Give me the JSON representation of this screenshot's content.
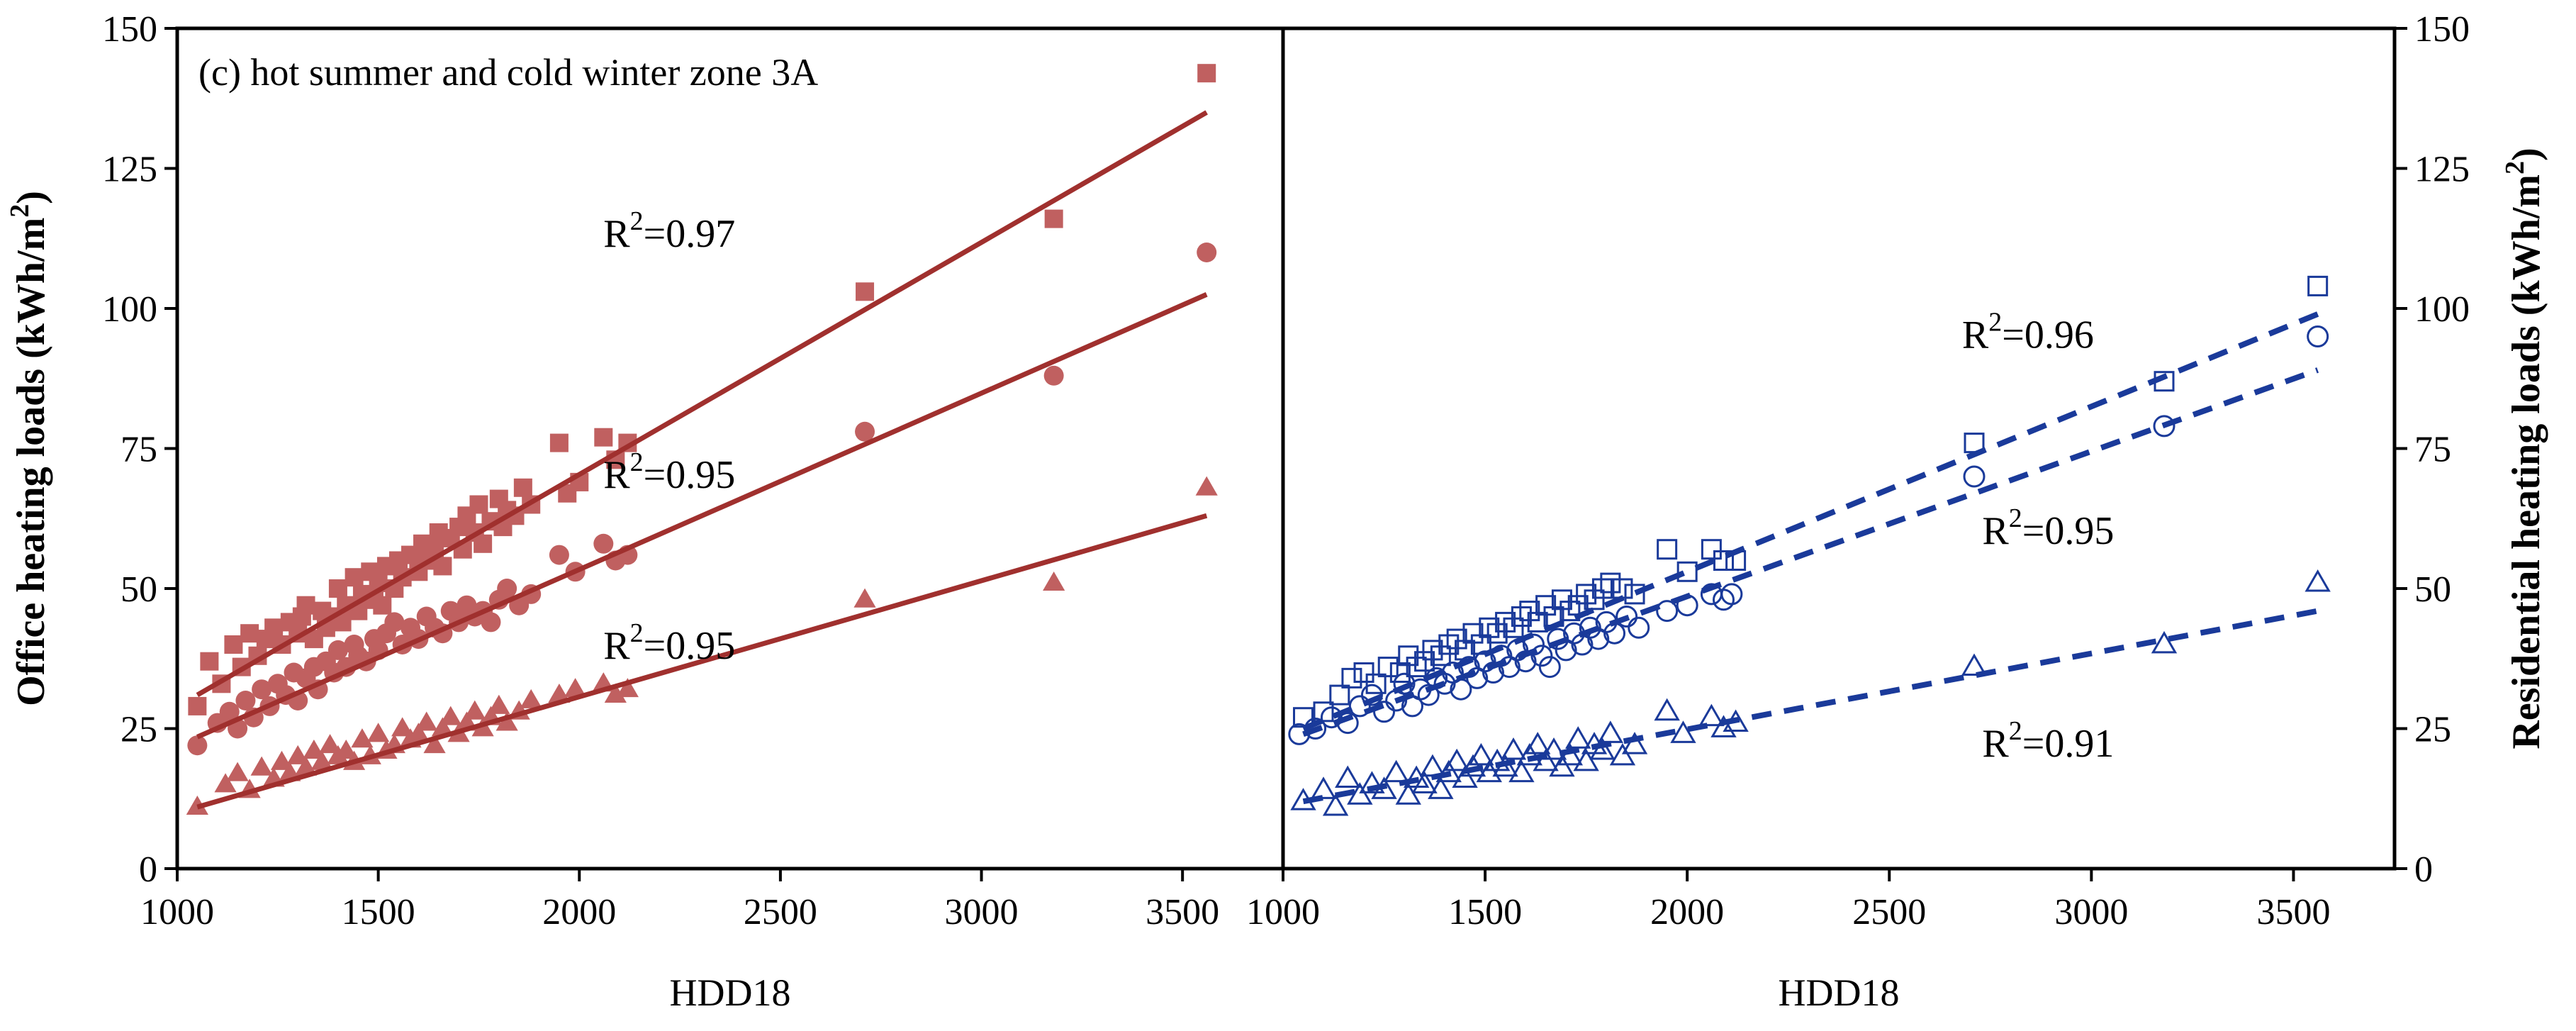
{
  "panel_label": "(c) hot summer and cold winter zone 3A",
  "colors": {
    "office": "#A0302E",
    "office_marker": "#C06060",
    "residential": "#1A3A9A",
    "axis": "#000000",
    "background": "#FFFFFF"
  },
  "chart_data": [
    {
      "id": "office",
      "type": "scatter",
      "title": "",
      "xlabel": "HDD18",
      "ylabel_main": "Office heating loads (kWh/m",
      "ylabel_sup": "2",
      "ylabel_close": ")",
      "xlim": [
        1000,
        3750
      ],
      "ylim": [
        0,
        150
      ],
      "xticks": [
        "1000",
        "1500",
        "2000",
        "2500",
        "3000",
        "3500"
      ],
      "yticks": [
        "0",
        "25",
        "50",
        "75",
        "100",
        "125",
        "150"
      ],
      "series": [
        {
          "name": "Office - square",
          "marker": "square-filled",
          "fit": {
            "x": [
              1050,
              3560
            ],
            "y": [
              31,
              135
            ],
            "r2_prefix": "R",
            "r2_sup": "2",
            "r2_value": "=0.97",
            "label_at": [
              2060,
              111
            ]
          },
          "x": [
            1050,
            1080,
            1110,
            1140,
            1160,
            1180,
            1200,
            1220,
            1240,
            1260,
            1280,
            1300,
            1310,
            1320,
            1340,
            1360,
            1370,
            1380,
            1400,
            1410,
            1420,
            1440,
            1450,
            1460,
            1480,
            1490,
            1500,
            1510,
            1520,
            1540,
            1550,
            1560,
            1580,
            1600,
            1610,
            1620,
            1640,
            1650,
            1660,
            1680,
            1700,
            1710,
            1720,
            1740,
            1750,
            1760,
            1780,
            1800,
            1810,
            1820,
            1840,
            1860,
            1880,
            1950,
            1970,
            2000,
            2060,
            2090,
            2120,
            2710,
            3180,
            3560
          ],
          "y": [
            29,
            37,
            33,
            40,
            36,
            42,
            38,
            41,
            43,
            40,
            44,
            42,
            45,
            47,
            41,
            46,
            43,
            45,
            50,
            44,
            47,
            52,
            46,
            49,
            53,
            48,
            51,
            47,
            54,
            50,
            55,
            52,
            56,
            53,
            58,
            55,
            57,
            60,
            54,
            59,
            61,
            57,
            63,
            60,
            65,
            58,
            62,
            66,
            61,
            64,
            63,
            68,
            65,
            76,
            67,
            69,
            77,
            73,
            76,
            103,
            116,
            142
          ]
        },
        {
          "name": "Office - circle",
          "marker": "circle-filled",
          "fit": {
            "x": [
              1050,
              3560
            ],
            "y": [
              23.5,
              102.5
            ],
            "r2_prefix": "R",
            "r2_sup": "2",
            "r2_value": "=0.95",
            "label_at": [
              2060,
              68
            ]
          },
          "x": [
            1050,
            1100,
            1130,
            1150,
            1170,
            1190,
            1210,
            1230,
            1250,
            1270,
            1290,
            1300,
            1320,
            1340,
            1350,
            1370,
            1390,
            1400,
            1420,
            1440,
            1450,
            1470,
            1490,
            1500,
            1520,
            1540,
            1560,
            1580,
            1600,
            1620,
            1640,
            1660,
            1680,
            1700,
            1720,
            1740,
            1760,
            1780,
            1800,
            1820,
            1850,
            1880,
            1950,
            1990,
            2060,
            2090,
            2120,
            2710,
            3180,
            3560
          ],
          "y": [
            22,
            26,
            28,
            25,
            30,
            27,
            32,
            29,
            33,
            31,
            35,
            30,
            34,
            36,
            32,
            37,
            35,
            39,
            36,
            40,
            38,
            37,
            41,
            39,
            42,
            44,
            40,
            43,
            41,
            45,
            43,
            42,
            46,
            44,
            47,
            45,
            46,
            44,
            48,
            50,
            47,
            49,
            56,
            53,
            58,
            55,
            56,
            78,
            88,
            110
          ]
        },
        {
          "name": "Office - triangle",
          "marker": "triangle-filled",
          "fit": {
            "x": [
              1050,
              3560
            ],
            "y": [
              11,
              63
            ],
            "r2_prefix": "R",
            "r2_sup": "2",
            "r2_value": "=0.95",
            "label_at": [
              2060,
              37.5
            ]
          },
          "x": [
            1050,
            1120,
            1150,
            1180,
            1210,
            1240,
            1260,
            1280,
            1300,
            1320,
            1340,
            1360,
            1380,
            1400,
            1420,
            1440,
            1460,
            1480,
            1500,
            1520,
            1540,
            1560,
            1580,
            1600,
            1620,
            1640,
            1660,
            1680,
            1700,
            1720,
            1740,
            1760,
            1780,
            1800,
            1820,
            1850,
            1880,
            1950,
            1990,
            2060,
            2090,
            2120,
            2710,
            3180,
            3560
          ],
          "y": [
            11,
            15,
            17,
            14,
            18,
            16,
            19,
            17,
            20,
            18,
            21,
            19,
            22,
            20,
            21,
            19,
            23,
            20,
            24,
            21,
            22,
            25,
            23,
            24,
            26,
            22,
            25,
            27,
            24,
            26,
            28,
            25,
            27,
            29,
            26,
            28,
            30,
            31,
            32,
            33,
            31,
            32,
            48,
            51,
            68
          ]
        }
      ]
    },
    {
      "id": "residential",
      "type": "scatter",
      "title": "",
      "xlabel": "HDD18",
      "ylabel_main": "Residential heating loads (kWh/m",
      "ylabel_sup": "2",
      "ylabel_close": ")",
      "xlim": [
        1000,
        3750
      ],
      "ylim": [
        0,
        150
      ],
      "xticks": [
        "1000",
        "1500",
        "2000",
        "2500",
        "3000",
        "3500"
      ],
      "yticks": [
        "0",
        "25",
        "50",
        "75",
        "100",
        "125",
        "150"
      ],
      "series": [
        {
          "name": "Residential - square",
          "marker": "square-open",
          "fit": {
            "x": [
              1050,
              3560
            ],
            "y": [
              25,
              99
            ],
            "r2_prefix": "R",
            "r2_sup": "2",
            "r2_value": "=0.96",
            "label_at": [
              2680,
              93
            ]
          },
          "x": [
            1050,
            1100,
            1140,
            1170,
            1200,
            1230,
            1260,
            1290,
            1310,
            1330,
            1350,
            1370,
            1390,
            1410,
            1430,
            1450,
            1470,
            1490,
            1510,
            1530,
            1550,
            1570,
            1590,
            1610,
            1630,
            1650,
            1670,
            1690,
            1710,
            1730,
            1750,
            1770,
            1790,
            1810,
            1840,
            1870,
            1950,
            2000,
            2060,
            2090,
            2120,
            2710,
            3180,
            3560
          ],
          "y": [
            27,
            28,
            31,
            34,
            35,
            33,
            36,
            35,
            38,
            36,
            37,
            39,
            38,
            40,
            41,
            39,
            42,
            40,
            43,
            42,
            44,
            43,
            45,
            46,
            44,
            47,
            45,
            48,
            46,
            47,
            49,
            48,
            50,
            51,
            50,
            49,
            57,
            53,
            57,
            55,
            55,
            76,
            87,
            104
          ]
        },
        {
          "name": "Residential - circle",
          "marker": "circle-open",
          "fit": {
            "x": [
              1050,
              3560
            ],
            "y": [
              24,
              89
            ],
            "r2_prefix": "R",
            "r2_sup": "2",
            "r2_value": "=0.95",
            "label_at": [
              2730,
              58
            ]
          },
          "x": [
            1040,
            1080,
            1120,
            1160,
            1190,
            1220,
            1250,
            1280,
            1300,
            1320,
            1340,
            1360,
            1380,
            1400,
            1420,
            1440,
            1460,
            1480,
            1500,
            1520,
            1540,
            1560,
            1580,
            1600,
            1620,
            1640,
            1660,
            1680,
            1700,
            1720,
            1740,
            1760,
            1780,
            1800,
            1820,
            1850,
            1880,
            1950,
            2000,
            2060,
            2090,
            2110,
            2710,
            3180,
            3560
          ],
          "y": [
            24,
            25,
            27,
            26,
            29,
            31,
            28,
            30,
            33,
            29,
            32,
            31,
            34,
            33,
            35,
            32,
            36,
            34,
            37,
            35,
            38,
            36,
            39,
            37,
            40,
            38,
            36,
            41,
            39,
            42,
            40,
            43,
            41,
            44,
            42,
            45,
            43,
            46,
            47,
            49,
            48,
            49,
            70,
            79,
            95
          ]
        },
        {
          "name": "Residential - triangle",
          "marker": "triangle-open",
          "fit": {
            "x": [
              1050,
              3560
            ],
            "y": [
              12,
              46
            ],
            "r2_prefix": "R",
            "r2_sup": "2",
            "r2_value": "=0.91",
            "label_at": [
              2730,
              20
            ]
          },
          "x": [
            1050,
            1100,
            1130,
            1160,
            1190,
            1220,
            1250,
            1280,
            1310,
            1330,
            1350,
            1370,
            1390,
            1410,
            1430,
            1450,
            1470,
            1490,
            1510,
            1530,
            1550,
            1570,
            1590,
            1610,
            1630,
            1650,
            1670,
            1690,
            1710,
            1730,
            1750,
            1770,
            1790,
            1810,
            1840,
            1870,
            1950,
            1990,
            2060,
            2090,
            2120,
            2710,
            3180,
            3560
          ],
          "y": [
            12,
            14,
            11,
            16,
            13,
            15,
            14,
            17,
            13,
            16,
            15,
            18,
            14,
            17,
            19,
            16,
            18,
            20,
            17,
            19,
            18,
            21,
            17,
            20,
            22,
            19,
            21,
            18,
            20,
            23,
            19,
            22,
            21,
            24,
            20,
            22,
            28,
            24,
            27,
            25,
            26,
            36,
            40,
            51
          ]
        }
      ]
    }
  ]
}
